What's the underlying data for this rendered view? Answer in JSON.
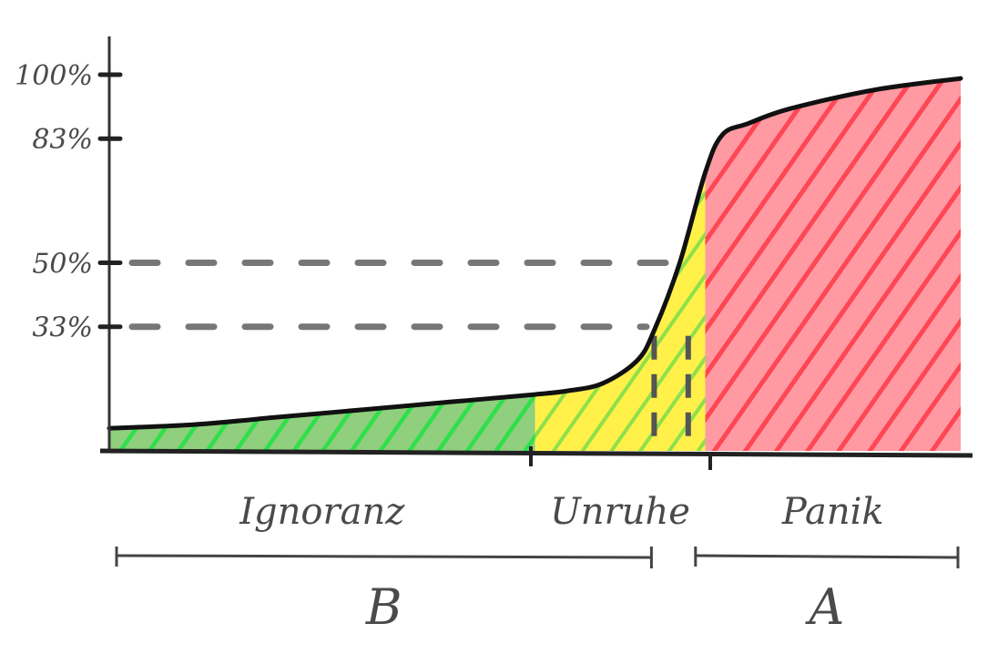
{
  "chart_data": {
    "type": "area",
    "y_ticks": [
      {
        "value": 33,
        "label": "33%",
        "dashed": true
      },
      {
        "value": 50,
        "label": "50%",
        "dashed": true
      },
      {
        "value": 83,
        "label": "83%",
        "dashed": false
      },
      {
        "value": 100,
        "label": "100%",
        "dashed": false
      }
    ],
    "x_range": [
      0,
      100
    ],
    "ylim": [
      0,
      100
    ],
    "curve": {
      "x": [
        0,
        10,
        20,
        30,
        40,
        50,
        54,
        58,
        62,
        64,
        67,
        70,
        72,
        75,
        80,
        90,
        100
      ],
      "y": [
        6,
        7,
        9,
        11,
        13,
        15,
        16,
        18,
        24,
        32,
        50,
        74,
        84,
        87,
        91,
        96,
        99
      ]
    },
    "phases": [
      {
        "label": "Ignoranz",
        "x_start": 0,
        "x_end": 50,
        "color": "#3fcf4a"
      },
      {
        "label": "Unruhe",
        "x_start": 50,
        "x_end": 70,
        "color": "#ffe933"
      },
      {
        "label": "Panik",
        "x_start": 70,
        "x_end": 100,
        "color": "#ff4d5e"
      }
    ],
    "groups": [
      {
        "label": "B",
        "x_start": 0,
        "x_end": 64
      },
      {
        "label": "A",
        "x_start": 68,
        "x_end": 100
      }
    ],
    "dashed_markers_x": [
      64,
      68
    ]
  }
}
